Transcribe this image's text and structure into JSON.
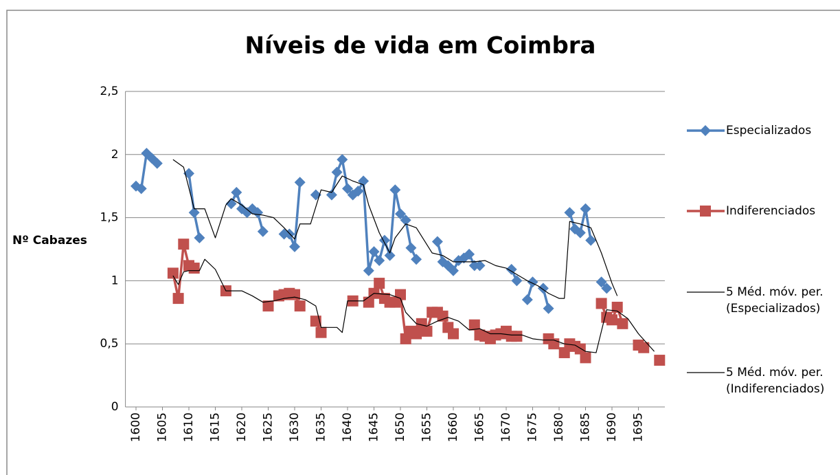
{
  "chart_data": {
    "type": "line",
    "title": "Níveis de vida em Coimbra",
    "y_label": "Nº Cabazes",
    "xlim": [
      1598,
      1700
    ],
    "xticks": [
      1600,
      1605,
      1610,
      1615,
      1620,
      1625,
      1630,
      1635,
      1640,
      1645,
      1650,
      1655,
      1660,
      1665,
      1670,
      1675,
      1680,
      1685,
      1690,
      1695
    ],
    "ylim": [
      0,
      2.5
    ],
    "yticks": [
      0,
      {
        "value": 0.5,
        "label": "0,5"
      },
      1,
      {
        "value": 1.5,
        "label": "1,5"
      },
      2,
      {
        "value": 2.5,
        "label": "2,5"
      }
    ],
    "grid": true,
    "legend": "right",
    "series": [
      {
        "name": "Especializados",
        "color": "#4f81bd",
        "marker": "diamond",
        "x": [
          1600,
          1601,
          1602,
          1603,
          1604,
          1605,
          1610,
          1611,
          1612,
          1613,
          1618,
          1619,
          1620,
          1621,
          1622,
          1623,
          1624,
          1625,
          1628,
          1629,
          1630,
          1631,
          1632,
          1634,
          1635,
          1637,
          1638,
          1639,
          1640,
          1641,
          1642,
          1643,
          1644,
          1645,
          1646,
          1647,
          1648,
          1649,
          1650,
          1651,
          1652,
          1653,
          1654,
          1657,
          1658,
          1659,
          1660,
          1661,
          1662,
          1663,
          1664,
          1665,
          1666,
          1671,
          1672,
          1673,
          1674,
          1675,
          1676,
          1677,
          1678,
          1679,
          1682,
          1683,
          1684,
          1685,
          1686,
          1687,
          1688,
          1689
        ],
        "values": [
          1.75,
          1.73,
          2.01,
          1.97,
          1.93,
          null,
          1.85,
          1.54,
          1.34,
          null,
          1.61,
          1.7,
          1.57,
          1.54,
          1.57,
          1.54,
          1.39,
          null,
          1.37,
          1.37,
          1.27,
          1.78,
          null,
          1.68,
          null,
          1.68,
          1.86,
          1.96,
          1.73,
          1.68,
          1.71,
          1.79,
          1.08,
          1.23,
          1.16,
          1.32,
          1.2,
          1.72,
          1.53,
          1.48,
          1.26,
          1.17,
          null,
          1.31,
          1.15,
          1.12,
          1.08,
          1.16,
          1.18,
          1.21,
          1.12,
          1.12,
          null,
          1.09,
          1.0,
          null,
          0.85,
          0.99,
          null,
          0.94,
          0.78,
          null,
          1.54,
          1.41,
          1.38,
          1.57,
          1.32,
          null,
          0.99,
          0.94
        ]
      },
      {
        "name": "Indiferenciados",
        "color": "#c0504d",
        "marker": "square",
        "x": [
          1607,
          1608,
          1609,
          1610,
          1611,
          1612,
          1617,
          1618,
          1625,
          1626,
          1627,
          1628,
          1629,
          1630,
          1631,
          1632,
          1634,
          1635,
          1636,
          1641,
          1642,
          1644,
          1645,
          1646,
          1647,
          1648,
          1649,
          1650,
          1651,
          1652,
          1653,
          1654,
          1655,
          1656,
          1657,
          1658,
          1659,
          1660,
          1661,
          1664,
          1665,
          1666,
          1667,
          1668,
          1669,
          1670,
          1671,
          1672,
          1673,
          1678,
          1679,
          1680,
          1681,
          1682,
          1683,
          1684,
          1685,
          1686,
          1688,
          1689,
          1690,
          1691,
          1692,
          1693,
          1695,
          1696,
          1697,
          1699
        ],
        "values": [
          1.06,
          0.86,
          1.29,
          1.12,
          1.1,
          null,
          0.92,
          null,
          0.8,
          null,
          0.88,
          0.89,
          0.9,
          0.89,
          0.8,
          null,
          0.68,
          0.59,
          null,
          0.84,
          null,
          0.83,
          0.9,
          0.98,
          0.86,
          0.83,
          0.83,
          0.89,
          0.54,
          0.6,
          0.58,
          0.66,
          0.6,
          0.75,
          0.75,
          0.72,
          0.63,
          0.58,
          null,
          0.65,
          0.57,
          0.56,
          0.54,
          0.57,
          0.58,
          0.6,
          0.56,
          0.56,
          null,
          0.54,
          0.5,
          null,
          0.43,
          0.5,
          0.48,
          0.46,
          0.39,
          null,
          0.82,
          0.71,
          0.69,
          0.79,
          0.66,
          null,
          0.49,
          0.47,
          null,
          0.37
        ]
      },
      {
        "name": "5 Méd. móv. per. (Especializados)",
        "color": "#000000",
        "marker": "none",
        "x": [
          1607,
          1609,
          1611,
          1613,
          1615,
          1617,
          1618,
          1620,
          1622,
          1624,
          1626,
          1628,
          1630,
          1631,
          1633,
          1635,
          1637,
          1639,
          1641,
          1643,
          1644,
          1646,
          1648,
          1649,
          1651,
          1653,
          1656,
          1658,
          1660,
          1662,
          1664,
          1666,
          1668,
          1670,
          1672,
          1674,
          1676,
          1678,
          1680,
          1681,
          1682,
          1684,
          1686,
          1688,
          1690,
          1691
        ],
        "values": [
          1.96,
          1.9,
          1.57,
          1.57,
          1.34,
          1.6,
          1.65,
          1.6,
          1.53,
          1.52,
          1.5,
          1.42,
          1.33,
          1.45,
          1.45,
          1.72,
          1.7,
          1.83,
          1.79,
          1.76,
          1.6,
          1.38,
          1.22,
          1.34,
          1.45,
          1.42,
          1.22,
          1.2,
          1.15,
          1.15,
          1.15,
          1.16,
          1.12,
          1.1,
          1.05,
          1.0,
          0.96,
          0.9,
          0.86,
          0.86,
          1.47,
          1.45,
          1.42,
          1.22,
          0.98,
          0.88
        ]
      },
      {
        "name": "5 Méd. móv. per. (Indiferenciados)",
        "color": "#000000",
        "marker": "none",
        "x": [
          1607,
          1608,
          1609,
          1610,
          1612,
          1613,
          1615,
          1617,
          1620,
          1622,
          1624,
          1626,
          1628,
          1630,
          1632,
          1634,
          1635,
          1638,
          1639,
          1640,
          1643,
          1645,
          1648,
          1650,
          1651,
          1653,
          1655,
          1657,
          1659,
          1661,
          1663,
          1665,
          1667,
          1669,
          1671,
          1673,
          1675,
          1677,
          1679,
          1681,
          1683,
          1685,
          1687,
          1689,
          1691,
          1693,
          1695,
          1698
        ],
        "values": [
          1.04,
          0.97,
          1.07,
          1.08,
          1.08,
          1.17,
          1.09,
          0.92,
          0.92,
          0.88,
          0.83,
          0.84,
          0.86,
          0.87,
          0.85,
          0.8,
          0.63,
          0.63,
          0.59,
          0.84,
          0.84,
          0.9,
          0.89,
          0.86,
          0.75,
          0.66,
          0.64,
          0.68,
          0.71,
          0.68,
          0.61,
          0.62,
          0.58,
          0.58,
          0.57,
          0.57,
          0.54,
          0.53,
          0.53,
          0.5,
          0.49,
          0.44,
          0.43,
          0.77,
          0.76,
          0.7,
          0.58,
          0.44
        ]
      }
    ]
  }
}
